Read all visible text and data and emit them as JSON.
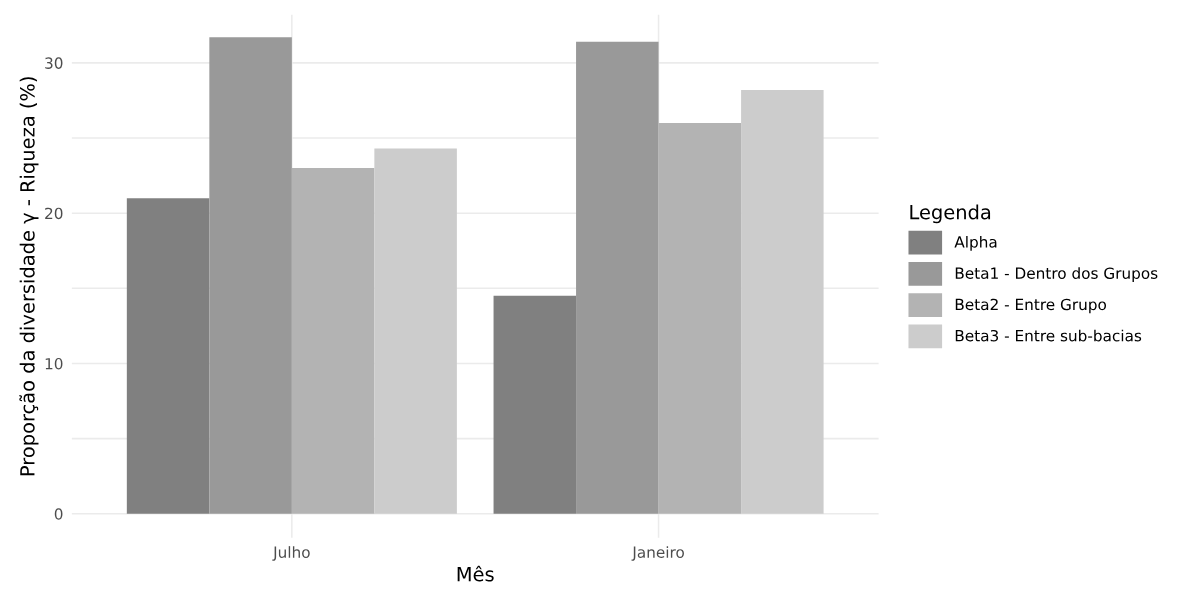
{
  "chart_data": {
    "type": "bar",
    "xlabel": "Mês",
    "ylabel": "Proporção da diversidade γ - Riqueza (%)",
    "legend_title": "Legenda",
    "categories": [
      "Julho",
      "Janeiro"
    ],
    "series": [
      {
        "name": "Alpha",
        "color": "#808080",
        "values": [
          21.0,
          14.5
        ]
      },
      {
        "name": "Beta1 - Dentro dos Grupos",
        "color": "#999999",
        "values": [
          31.7,
          31.4
        ]
      },
      {
        "name": "Beta2 - Entre Grupo",
        "color": "#b3b3b3",
        "values": [
          23.0,
          26.0
        ]
      },
      {
        "name": "Beta3 - Entre sub-bacias",
        "color": "#cccccc",
        "values": [
          24.3,
          28.2
        ]
      }
    ],
    "ylim": [
      -1.6,
      33.2
    ],
    "yticks": [
      0,
      {
        "value": 5,
        "label": null
      },
      10,
      {
        "value": 15,
        "label": null
      },
      20,
      {
        "value": 25,
        "label": null
      },
      30
    ],
    "grid": true,
    "legend": "right"
  }
}
